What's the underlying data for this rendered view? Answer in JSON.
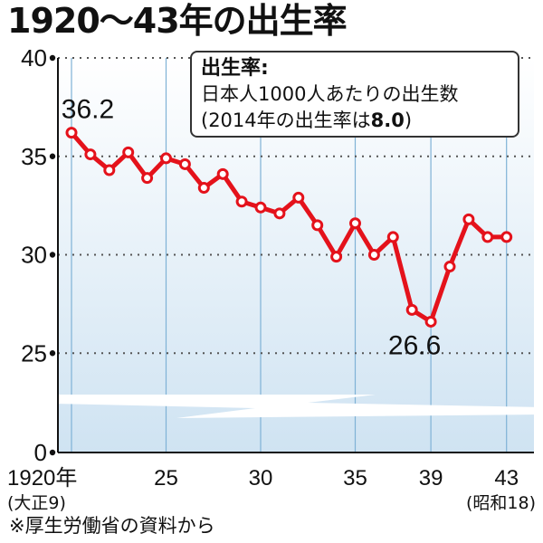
{
  "title": "1920〜43年の出生率",
  "definition": {
    "heading": "出生率:",
    "line1": "日本人1000人あたりの出生数",
    "line2_pre": "(2014年の出生率は",
    "line2_value": "8.0",
    "line2_post": ")"
  },
  "source_note": "※厚生労働省の資料から",
  "colors": {
    "line": "#e4121b",
    "grid_vertical": "#7fb2d6",
    "background_top": "#ffffff",
    "background_bottom": "#cfe3f2"
  },
  "chart_data": {
    "type": "line",
    "title": "1920〜43年の出生率",
    "xlabel": "",
    "ylabel": "",
    "x": [
      1920,
      1921,
      1922,
      1923,
      1924,
      1925,
      1926,
      1927,
      1928,
      1929,
      1930,
      1931,
      1932,
      1933,
      1934,
      1935,
      1936,
      1937,
      1938,
      1939,
      1940,
      1941,
      1942,
      1943
    ],
    "series": [
      {
        "values": [
          36.2,
          35.1,
          34.3,
          35.2,
          33.9,
          34.9,
          34.6,
          33.4,
          34.1,
          32.7,
          32.4,
          32.1,
          32.9,
          31.5,
          29.9,
          31.6,
          30.0,
          30.9,
          27.2,
          26.6,
          29.4,
          31.8,
          30.9,
          30.9
        ]
      }
    ],
    "ylim": [
      0,
      40
    ],
    "y_axis_break": [
      0,
      25
    ],
    "yticks": [
      {
        "value": 40,
        "label": "40"
      },
      {
        "value": 35,
        "label": "35"
      },
      {
        "value": 30,
        "label": "30"
      },
      {
        "value": 25,
        "label": "25"
      },
      {
        "value": 0,
        "label": "0"
      }
    ],
    "xticks": [
      {
        "value": 1920,
        "label": "1920年",
        "sub": "(大正9)"
      },
      {
        "value": 1925,
        "label": "25",
        "sub": ""
      },
      {
        "value": 1930,
        "label": "30",
        "sub": ""
      },
      {
        "value": 1935,
        "label": "35",
        "sub": ""
      },
      {
        "value": 1939,
        "label": "39",
        "sub": ""
      },
      {
        "value": 1943,
        "label": "43",
        "sub": "(昭和18)"
      }
    ],
    "annotations": [
      {
        "x": 1920,
        "y": 36.2,
        "text": "36.2"
      },
      {
        "x": 1939,
        "y": 26.6,
        "text": "26.6"
      }
    ],
    "grid": true
  }
}
